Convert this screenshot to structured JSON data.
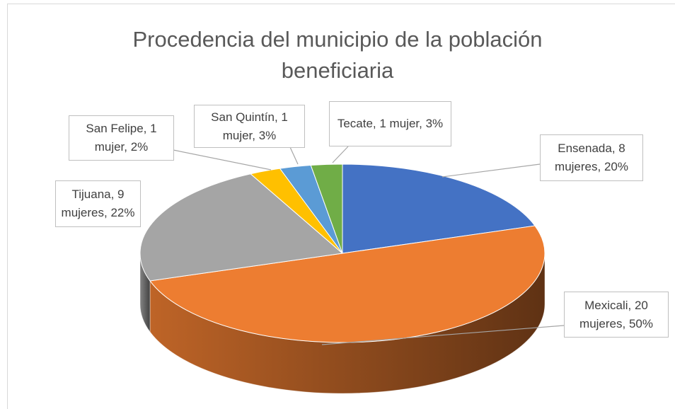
{
  "chart_data": {
    "type": "pie3d",
    "title": "Procedencia del municipio de la población beneficiaria",
    "categories": [
      "Ensenada",
      "Mexicali",
      "Tijuana",
      "San Felipe",
      "San Quintín",
      "Tecate"
    ],
    "values": [
      8,
      20,
      9,
      1,
      1,
      1
    ],
    "value_labels": [
      "Ensenada, 8 mujeres, 20%",
      "Mexicali, 20 mujeres, 50%",
      "Tijuana, 9 mujeres, 22%",
      "San Felipe, 1 mujer, 2%",
      "San Quintín, 1 mujer, 3%",
      "Tecate, 1 mujer, 3%"
    ],
    "colors": [
      "#4472c4",
      "#ed7d31",
      "#a5a5a5",
      "#ffc000",
      "#5b9bd5",
      "#70ad47"
    ]
  }
}
